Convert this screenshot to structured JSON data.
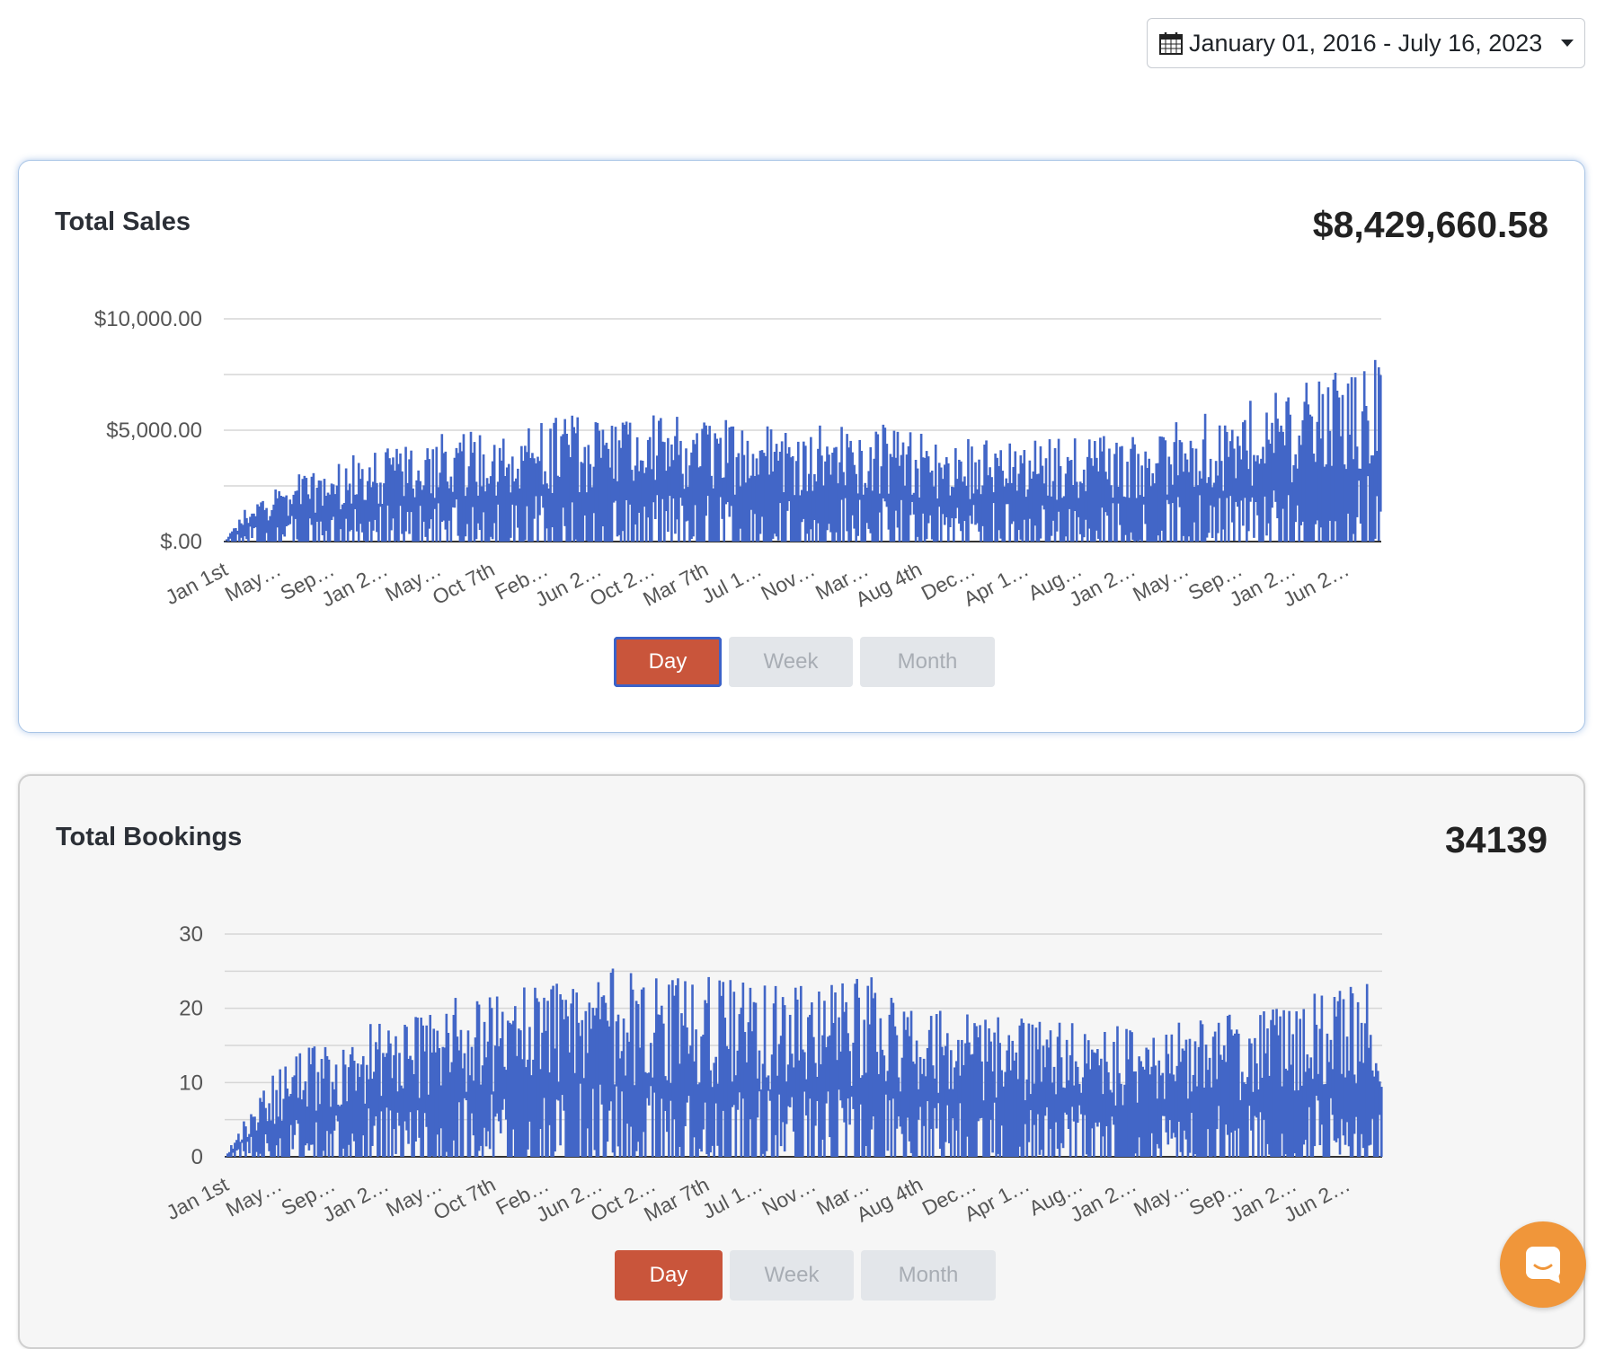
{
  "date_range": {
    "label": "January 01, 2016 - July 16, 2023"
  },
  "period_buttons": {
    "day": "Day",
    "week": "Week",
    "month": "Month"
  },
  "colors": {
    "series": "#4266c7",
    "active_button": "#c9553b",
    "chat_button": "#f0963a"
  },
  "sales": {
    "title": "Total Sales",
    "total": "$8,429,660.58"
  },
  "bookings": {
    "title": "Total Bookings",
    "total": "34139"
  },
  "chart_data": [
    {
      "type": "bar",
      "title": "Total Sales",
      "ylim": [
        0,
        10000
      ],
      "yticks": [
        0,
        2500,
        5000,
        7500,
        10000
      ],
      "ytick_labels": [
        "$.00",
        "",
        "$5,000.00",
        "",
        "$10,000.00"
      ],
      "xtick_labels": [
        "Jan 1st",
        "May…",
        "Sep…",
        "Jan 2…",
        "May…",
        "Oct 7th",
        "Feb…",
        "Jun 2…",
        "Oct 2…",
        "Mar 7th",
        "Jul 1…",
        "Nov…",
        "Mar…",
        "Aug 4th",
        "Dec…",
        "Apr 1…",
        "Aug…",
        "Jan 2…",
        "May…",
        "Sep…",
        "Jan 2…",
        "Jun 2…"
      ],
      "x_range": [
        "2016-01-01",
        "2023-07-16"
      ],
      "grid": true,
      "series": [
        {
          "values_trend": [
            [
              0,
              0
            ],
            [
              0.02,
              1200
            ],
            [
              0.05,
              2000
            ],
            [
              0.1,
              2600
            ],
            [
              0.2,
              3500
            ],
            [
              0.3,
              4000
            ],
            [
              0.4,
              3900
            ],
            [
              0.5,
              3700
            ],
            [
              0.56,
              3700
            ],
            [
              0.6,
              3400
            ],
            [
              0.7,
              3200
            ],
            [
              0.8,
              3500
            ],
            [
              0.9,
              4500
            ],
            [
              1.0,
              5800
            ]
          ]
        }
      ]
    },
    {
      "type": "bar",
      "title": "Total Bookings",
      "ylim": [
        0,
        30
      ],
      "yticks": [
        0,
        5,
        10,
        15,
        20,
        25,
        30
      ],
      "ytick_labels": [
        "0",
        "",
        "10",
        "",
        "20",
        "",
        "30"
      ],
      "xtick_labels": [
        "Jan 1st",
        "May…",
        "Sep…",
        "Jan 2…",
        "May…",
        "Oct 7th",
        "Feb…",
        "Jun 2…",
        "Oct 2…",
        "Mar 7th",
        "Jul 1…",
        "Nov…",
        "Mar…",
        "Aug 4th",
        "Dec…",
        "Apr 1…",
        "Aug…",
        "Jan 2…",
        "May…",
        "Sep…",
        "Jan 2…",
        "Jun 2…"
      ],
      "x_range": [
        "2016-01-01",
        "2023-07-16"
      ],
      "grid": true,
      "series": [
        {
          "values_trend": [
            [
              0,
              0
            ],
            [
              0.02,
              5
            ],
            [
              0.05,
              9
            ],
            [
              0.1,
              12
            ],
            [
              0.2,
              15
            ],
            [
              0.3,
              18
            ],
            [
              0.4,
              17
            ],
            [
              0.5,
              16
            ],
            [
              0.56,
              17
            ],
            [
              0.6,
              14
            ],
            [
              0.7,
              13
            ],
            [
              0.8,
              12
            ],
            [
              0.9,
              14
            ],
            [
              1.0,
              17
            ]
          ]
        }
      ]
    }
  ]
}
